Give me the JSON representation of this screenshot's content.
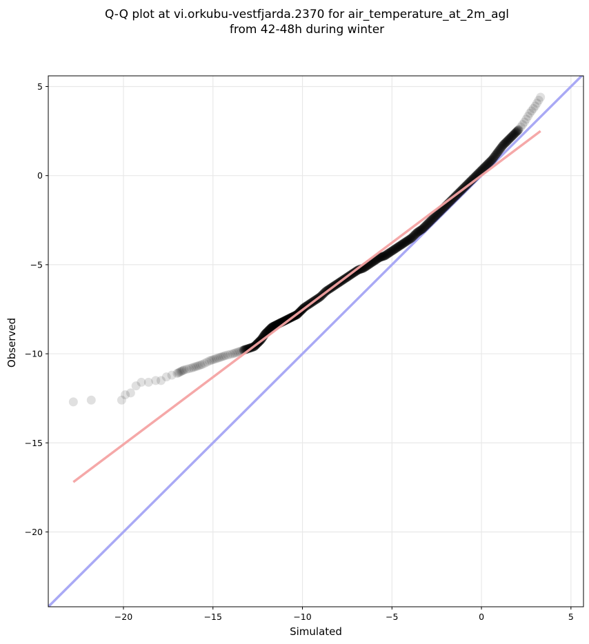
{
  "title": {
    "line1": "Q-Q plot at vi.orkubu-vestfjarda.2370 for air_temperature_at_2m_agl",
    "line2": "from 42-48h during winter"
  },
  "colors": {
    "points": "#000000",
    "fit_line": "#f4a3a3",
    "identity_line": "#a9a9f5",
    "grid": "#e8e8e8"
  },
  "chart_data": {
    "type": "scatter",
    "title": "Q-Q plot at vi.orkubu-vestfjarda.2370 for air_temperature_at_2m_agl from 42-48h during winter",
    "xlabel": "Simulated",
    "ylabel": "Observed",
    "xlim": [
      -24.2,
      5.7
    ],
    "ylim": [
      -24.2,
      5.6
    ],
    "xticks": [
      -20,
      -15,
      -10,
      -5,
      0,
      5
    ],
    "yticks": [
      -20,
      -15,
      -10,
      -5,
      0,
      5
    ],
    "tick_labels": [
      "−20",
      "−15",
      "−10",
      "−5",
      "0",
      "5"
    ],
    "grid": true,
    "series": [
      {
        "name": "",
        "kind": "quantile-points",
        "x": [
          -22.8,
          -21.8,
          -20.1,
          -19.9,
          -19.6,
          -19.3,
          -19.0,
          -18.6,
          -18.2,
          -17.9,
          -17.6,
          -17.3,
          -17.0,
          -16.8,
          -16.6,
          -16.2,
          -15.9,
          -15.6,
          -15.2,
          -14.9,
          -14.6,
          -14.3,
          -13.9,
          -13.6,
          -13.3,
          -13.0,
          -12.7,
          -12.5,
          -12.3,
          -12.1,
          -11.9,
          -11.7,
          -11.5,
          -11.3,
          -11.1,
          -10.9,
          -10.7,
          -10.5,
          -10.3,
          -10.1,
          -9.9,
          -9.6,
          -9.3,
          -9.0,
          -8.7,
          -8.4,
          -8.1,
          -7.8,
          -7.5,
          -7.2,
          -6.9,
          -6.6,
          -6.3,
          -6.0,
          -5.7,
          -5.4,
          -5.1,
          -4.8,
          -4.5,
          -4.2,
          -3.9,
          -3.6,
          -3.3,
          -3.0,
          -2.7,
          -2.4,
          -2.1,
          -1.8,
          -1.5,
          -1.2,
          -0.9,
          -0.6,
          -0.3,
          0.0,
          0.3,
          0.6,
          0.9,
          1.2,
          1.5,
          1.8,
          2.1,
          2.4,
          2.7,
          3.0,
          3.3
        ],
        "y": [
          -12.7,
          -12.6,
          -12.6,
          -12.3,
          -12.2,
          -11.8,
          -11.6,
          -11.6,
          -11.5,
          -11.5,
          -11.3,
          -11.2,
          -11.1,
          -11.0,
          -10.9,
          -10.8,
          -10.7,
          -10.6,
          -10.4,
          -10.3,
          -10.2,
          -10.1,
          -10.0,
          -9.9,
          -9.8,
          -9.7,
          -9.6,
          -9.4,
          -9.2,
          -8.9,
          -8.7,
          -8.5,
          -8.4,
          -8.3,
          -8.2,
          -8.1,
          -8.0,
          -7.9,
          -7.8,
          -7.6,
          -7.4,
          -7.2,
          -7.0,
          -6.8,
          -6.5,
          -6.3,
          -6.1,
          -5.9,
          -5.7,
          -5.5,
          -5.3,
          -5.2,
          -5.0,
          -4.8,
          -4.6,
          -4.5,
          -4.3,
          -4.1,
          -3.9,
          -3.7,
          -3.5,
          -3.2,
          -3.0,
          -2.7,
          -2.4,
          -2.1,
          -1.8,
          -1.5,
          -1.2,
          -0.9,
          -0.6,
          -0.3,
          0.0,
          0.3,
          0.6,
          0.9,
          1.3,
          1.7,
          2.0,
          2.3,
          2.6,
          3.0,
          3.5,
          3.9,
          4.4
        ]
      },
      {
        "name": "",
        "kind": "fit-line",
        "x": [
          -22.8,
          3.3
        ],
        "y": [
          -17.2,
          2.5
        ]
      },
      {
        "name": "",
        "kind": "identity-line",
        "x": [
          -24.2,
          5.7
        ],
        "y": [
          -24.2,
          5.7
        ]
      }
    ]
  }
}
